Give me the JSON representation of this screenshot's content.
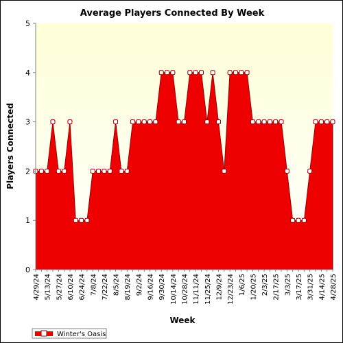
{
  "chart_data": {
    "type": "area",
    "title": "Average Players Connected By Week",
    "xlabel": "Week",
    "ylabel": "Players Connected",
    "ylim": [
      0,
      5
    ],
    "yticks": [
      "0",
      "1",
      "2",
      "3",
      "4",
      "5"
    ],
    "grid": false,
    "legend_position": "bottom-left",
    "colors": {
      "fill": "#ee0000",
      "edge": "#990000",
      "marker_fill": "#ffffff",
      "plot_bg_top": "#ffffd8",
      "plot_bg_bottom": "#ffffff"
    },
    "categories": [
      "4/29/24",
      "5/6/24",
      "5/13/24",
      "5/20/24",
      "5/27/24",
      "6/3/24",
      "6/10/24",
      "6/17/24",
      "6/24/24",
      "7/1/24",
      "7/8/24",
      "7/15/24",
      "7/22/24",
      "7/29/24",
      "8/5/24",
      "8/12/24",
      "8/19/24",
      "8/26/24",
      "9/2/24",
      "9/9/24",
      "9/16/24",
      "9/23/24",
      "9/30/24",
      "10/7/24",
      "10/14/24",
      "10/21/24",
      "10/28/24",
      "11/4/24",
      "11/11/24",
      "11/18/24",
      "11/25/24",
      "12/2/24",
      "12/9/24",
      "12/16/24",
      "12/23/24",
      "12/30/24",
      "1/6/25",
      "1/13/25",
      "1/20/25",
      "1/27/25",
      "2/3/25",
      "2/10/25",
      "2/17/25",
      "2/24/25",
      "3/3/25",
      "3/10/25",
      "3/17/25",
      "3/24/25",
      "3/31/25",
      "4/7/25",
      "4/14/25",
      "4/21/25",
      "4/28/25"
    ],
    "tick_labels": [
      "4/29/24",
      "5/13/24",
      "5/27/24",
      "6/10/24",
      "6/24/24",
      "7/8/24",
      "7/22/24",
      "8/5/24",
      "8/19/24",
      "9/2/24",
      "9/16/24",
      "9/30/24",
      "10/14/24",
      "10/28/24",
      "11/11/24",
      "11/25/24",
      "12/9/24",
      "12/23/24",
      "1/6/25",
      "1/20/25",
      "2/3/25",
      "2/17/25",
      "3/3/25",
      "3/17/25",
      "3/31/25",
      "4/14/25",
      "4/28/25"
    ],
    "series": [
      {
        "name": "Winter's Oasis",
        "values": [
          2,
          2,
          2,
          3,
          2,
          2,
          3,
          1,
          1,
          1,
          2,
          2,
          2,
          2,
          3,
          2,
          2,
          3,
          3,
          3,
          3,
          3,
          4,
          4,
          4,
          3,
          3,
          4,
          4,
          4,
          3,
          4,
          3,
          2,
          4,
          4,
          4,
          4,
          3,
          3,
          3,
          3,
          3,
          3,
          2,
          1,
          1,
          1,
          2,
          3,
          3,
          3,
          3
        ]
      }
    ]
  }
}
